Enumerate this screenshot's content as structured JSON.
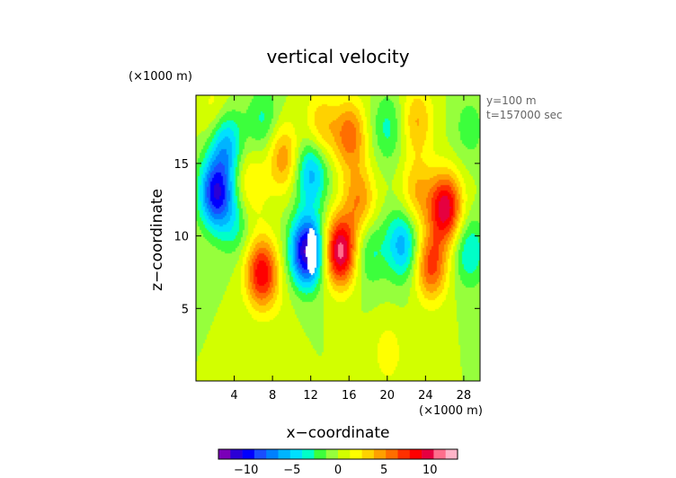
{
  "chart_data": {
    "type": "heatmap",
    "title": "vertical velocity",
    "xlabel": "x−coordinate",
    "ylabel": "z−coordinate",
    "x_unit": "(×1000 m)",
    "y_unit": "(×1000 m)",
    "annotations": [
      "y=100 m",
      "t=157000 sec"
    ],
    "xlim": [
      0,
      29.7
    ],
    "ylim": [
      0,
      19.7
    ],
    "xticks": [
      4,
      8,
      12,
      16,
      20,
      24,
      28
    ],
    "yticks": [
      5,
      10,
      15
    ],
    "xtick_labels": [
      "4",
      "8",
      "12",
      "16",
      "20",
      "24",
      "28"
    ],
    "ytick_labels": [
      "5",
      "10",
      "15"
    ],
    "colorbar": {
      "range": [
        -13,
        13
      ],
      "ticks": [
        -10,
        -5,
        0,
        5,
        10
      ],
      "tick_labels": [
        "−10",
        "−5",
        "0",
        "5",
        "10"
      ],
      "colors": [
        "#7a00b8",
        "#2b00d6",
        "#0000ff",
        "#1a4dff",
        "#0080ff",
        "#00b4ff",
        "#00e0ff",
        "#00ffc8",
        "#3cff3c",
        "#96ff3c",
        "#d2ff00",
        "#ffff00",
        "#ffd200",
        "#ffa000",
        "#ff6e00",
        "#ff3000",
        "#ff0000",
        "#e60040",
        "#ff6e8c",
        "#ffb4c8"
      ]
    },
    "field_min": -13,
    "field_max": 13,
    "features": [
      {
        "x": 2.0,
        "z": 13.0,
        "value": -10.0
      },
      {
        "x": 3.0,
        "z": 16.5,
        "value": -6.0
      },
      {
        "x": 4.0,
        "z": 11.0,
        "value": -3.0
      },
      {
        "x": 5.5,
        "z": 13.5,
        "value": 3.0
      },
      {
        "x": 2.0,
        "z": 18.5,
        "value": 2.5
      },
      {
        "x": 6.8,
        "z": 7.5,
        "value": 9.0
      },
      {
        "x": 9.0,
        "z": 15.5,
        "value": 5.0
      },
      {
        "x": 7.0,
        "z": 18.0,
        "value": -3.0
      },
      {
        "x": 11.5,
        "z": 9.0,
        "value": -12.0
      },
      {
        "x": 12.0,
        "z": 14.5,
        "value": -6.0
      },
      {
        "x": 13.0,
        "z": 17.5,
        "value": 4.0
      },
      {
        "x": 15.0,
        "z": 9.0,
        "value": 11.0
      },
      {
        "x": 16.0,
        "z": 17.0,
        "value": 6.0
      },
      {
        "x": 17.0,
        "z": 12.5,
        "value": 5.0
      },
      {
        "x": 18.0,
        "z": 9.0,
        "value": -3.0
      },
      {
        "x": 20.0,
        "z": 17.5,
        "value": -3.0
      },
      {
        "x": 21.5,
        "z": 9.5,
        "value": -6.0
      },
      {
        "x": 23.0,
        "z": 13.0,
        "value": 4.0
      },
      {
        "x": 23.0,
        "z": 18.0,
        "value": 4.0
      },
      {
        "x": 26.0,
        "z": 12.0,
        "value": 10.0
      },
      {
        "x": 24.5,
        "z": 8.0,
        "value": 7.0
      },
      {
        "x": 28.5,
        "z": 9.0,
        "value": -4.0
      },
      {
        "x": 28.5,
        "z": 17.5,
        "value": -2.0
      },
      {
        "x": 20.0,
        "z": 2.0,
        "value": 2.0
      },
      {
        "x": 9.0,
        "z": 5.0,
        "value": 0.5
      }
    ],
    "white_patch": {
      "x": 12.0,
      "z": 9.0,
      "value": -14
    }
  }
}
